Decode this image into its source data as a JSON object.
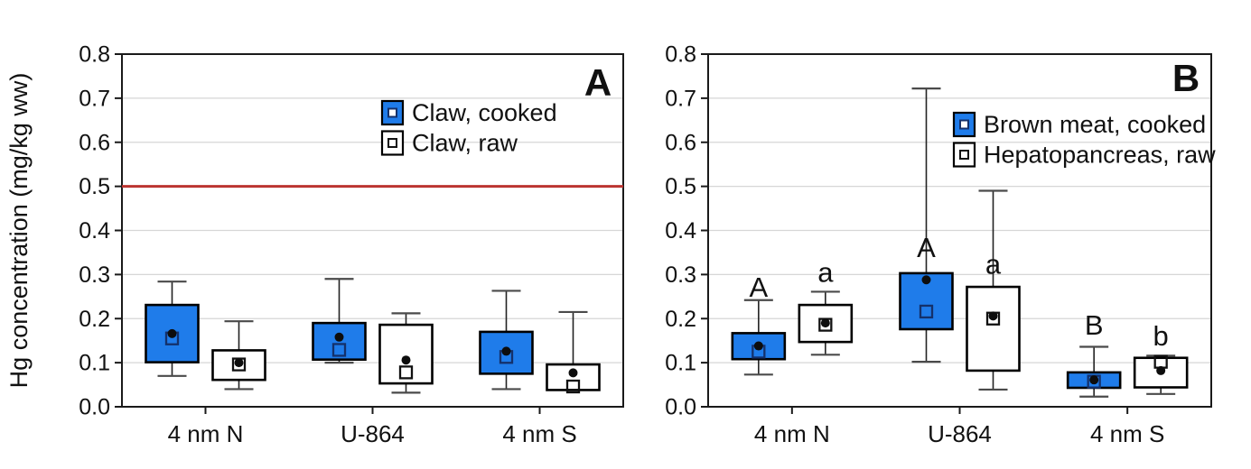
{
  "figure": {
    "panel_a_letter": "A",
    "panel_b_letter": "B",
    "accent_blue": "#1f7cea",
    "reference_red": "#bb3430",
    "gridline_color": "#d6d6d6"
  },
  "chart_data": [
    {
      "type": "boxplot",
      "panel": "A",
      "ylabel": "Hg concentration (mg/kg ww)",
      "ylim": [
        0.0,
        0.8
      ],
      "ytick_step": 0.1,
      "ytick_labels": [
        "0.0",
        "0.1",
        "0.2",
        "0.3",
        "0.4",
        "0.5",
        "0.6",
        "0.7",
        "0.8"
      ],
      "grid": true,
      "categories": [
        "4 nm N",
        "U-864",
        "4 nm S"
      ],
      "legend_position": "top-center",
      "reference_line": {
        "value": 0.5,
        "color": "#bb3430"
      },
      "series": [
        {
          "name": "Claw, cooked",
          "fill": "#1f7cea",
          "marker_stroke": "#14316b",
          "boxes": [
            {
              "category": "4 nm N",
              "low": 0.07,
              "q1": 0.101,
              "median": 0.155,
              "mean": 0.166,
              "q3": 0.231,
              "high": 0.284
            },
            {
              "category": "U-864",
              "low": 0.1,
              "q1": 0.107,
              "median": 0.129,
              "mean": 0.158,
              "q3": 0.19,
              "high": 0.29
            },
            {
              "category": "4 nm S",
              "low": 0.04,
              "q1": 0.075,
              "median": 0.113,
              "mean": 0.126,
              "q3": 0.17,
              "high": 0.263
            }
          ]
        },
        {
          "name": "Claw, raw",
          "fill": "#ffffff",
          "marker_stroke": "#111111",
          "boxes": [
            {
              "category": "4 nm N",
              "low": 0.04,
              "q1": 0.061,
              "median": 0.096,
              "mean": 0.1,
              "q3": 0.128,
              "high": 0.194
            },
            {
              "category": "U-864",
              "low": 0.032,
              "q1": 0.053,
              "median": 0.078,
              "mean": 0.106,
              "q3": 0.186,
              "high": 0.212
            },
            {
              "category": "4 nm S",
              "low": 0.038,
              "q1": 0.038,
              "median": 0.046,
              "mean": 0.077,
              "q3": 0.096,
              "high": 0.215
            }
          ]
        }
      ]
    },
    {
      "type": "boxplot",
      "panel": "B",
      "ylabel": "",
      "ylim": [
        0.0,
        0.8
      ],
      "ytick_step": 0.1,
      "ytick_labels": [
        "0.0",
        "0.1",
        "0.2",
        "0.3",
        "0.4",
        "0.5",
        "0.6",
        "0.7",
        "0.8"
      ],
      "grid": true,
      "categories": [
        "4 nm N",
        "U-864",
        "4 nm S"
      ],
      "legend_position": "top-center",
      "reference_line": null,
      "series": [
        {
          "name": "Brown meat, cooked",
          "fill": "#1f7cea",
          "marker_stroke": "#14316b",
          "boxes": [
            {
              "category": "4 nm N",
              "low": 0.073,
              "q1": 0.108,
              "median": 0.125,
              "mean": 0.138,
              "q3": 0.167,
              "high": 0.242,
              "letter": "A",
              "letter_y": 0.272
            },
            {
              "category": "U-864",
              "low": 0.102,
              "q1": 0.176,
              "median": 0.216,
              "mean": 0.288,
              "q3": 0.303,
              "high": 0.722,
              "letter": "A",
              "letter_y": 0.362
            },
            {
              "category": "4 nm S",
              "low": 0.023,
              "q1": 0.043,
              "median": 0.057,
              "mean": 0.061,
              "q3": 0.078,
              "high": 0.136,
              "letter": "B",
              "letter_y": 0.186
            }
          ]
        },
        {
          "name": "Hepatopancreas, raw",
          "fill": "#ffffff",
          "marker_stroke": "#111111",
          "boxes": [
            {
              "category": "4 nm N",
              "low": 0.118,
              "q1": 0.147,
              "median": 0.186,
              "mean": 0.19,
              "q3": 0.231,
              "high": 0.261,
              "letter": "a",
              "letter_y": 0.306
            },
            {
              "category": "U-864",
              "low": 0.039,
              "q1": 0.082,
              "median": 0.2,
              "mean": 0.206,
              "q3": 0.272,
              "high": 0.49,
              "letter": "a",
              "letter_y": 0.324
            },
            {
              "category": "4 nm S",
              "low": 0.029,
              "q1": 0.044,
              "median": 0.102,
              "mean": 0.082,
              "q3": 0.111,
              "high": 0.116,
              "letter": "b",
              "letter_y": 0.162
            }
          ]
        }
      ]
    }
  ]
}
